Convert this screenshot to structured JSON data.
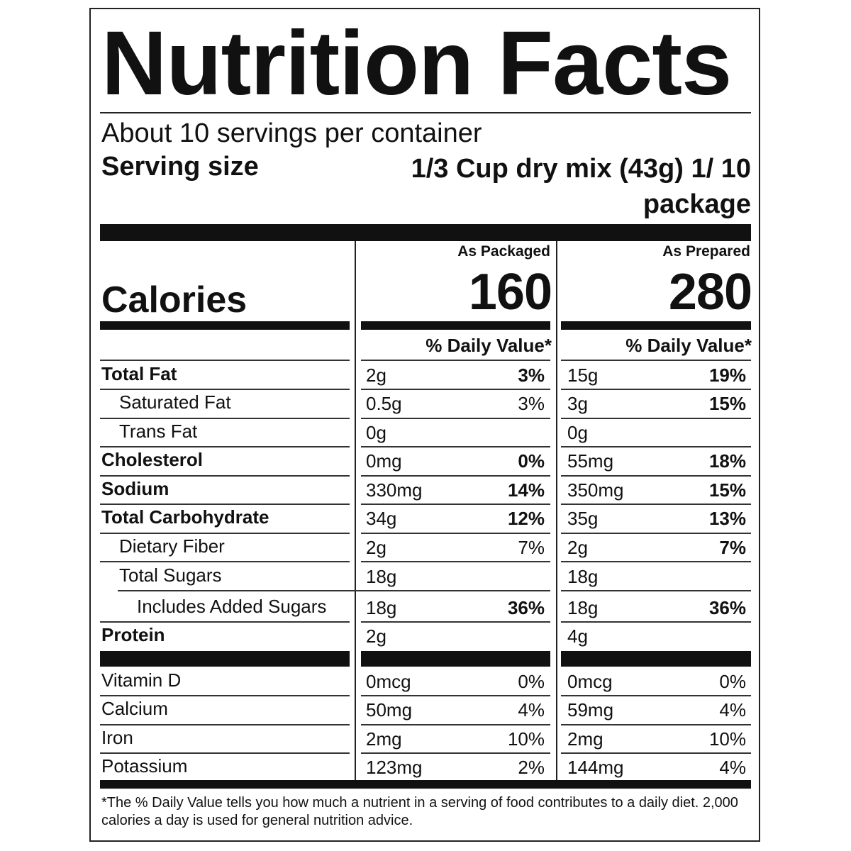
{
  "title": "Nutrition Facts",
  "servings_per_container": "About 10 servings per container",
  "serving_size": {
    "label": "Serving size",
    "value": "1/3 Cup dry mix (43g) 1/ 10 package"
  },
  "columns": [
    {
      "header": "As Packaged",
      "calories": "160",
      "dv_header": "% Daily Value*"
    },
    {
      "header": "As Prepared",
      "calories": "280",
      "dv_header": "% Daily Value*"
    }
  ],
  "calories_label": "Calories",
  "nutrients": [
    {
      "name": "Total Fat",
      "bold": true,
      "indent": 0,
      "packaged": {
        "amount": "2g",
        "dv": "3%"
      },
      "prepared": {
        "amount": "15g",
        "dv": "19%"
      }
    },
    {
      "name": "Saturated Fat",
      "bold": false,
      "indent": 1,
      "packaged": {
        "amount": "0.5g",
        "dv": "3%"
      },
      "prepared": {
        "amount": "3g",
        "dv": "15%"
      }
    },
    {
      "name": "Trans Fat",
      "bold": false,
      "indent": 1,
      "packaged": {
        "amount": "0g",
        "dv": ""
      },
      "prepared": {
        "amount": "0g",
        "dv": ""
      }
    },
    {
      "name": "Cholesterol",
      "bold": true,
      "indent": 0,
      "packaged": {
        "amount": "0mg",
        "dv": "0%"
      },
      "prepared": {
        "amount": "55mg",
        "dv": "18%"
      }
    },
    {
      "name": "Sodium",
      "bold": true,
      "indent": 0,
      "packaged": {
        "amount": "330mg",
        "dv": "14%"
      },
      "prepared": {
        "amount": "350mg",
        "dv": "15%"
      }
    },
    {
      "name": "Total Carbohydrate",
      "bold": true,
      "indent": 0,
      "packaged": {
        "amount": "34g",
        "dv": "12%"
      },
      "prepared": {
        "amount": "35g",
        "dv": "13%"
      }
    },
    {
      "name": "Dietary Fiber",
      "bold": false,
      "indent": 1,
      "packaged": {
        "amount": "2g",
        "dv": "7%"
      },
      "prepared": {
        "amount": "2g",
        "dv": "7%"
      }
    },
    {
      "name": "Total Sugars",
      "bold": false,
      "indent": 1,
      "packaged": {
        "amount": "18g",
        "dv": ""
      },
      "prepared": {
        "amount": "18g",
        "dv": ""
      }
    },
    {
      "name": "Includes Added Sugars",
      "bold": false,
      "indent": 2,
      "packaged": {
        "amount": "18g",
        "dv": "36%"
      },
      "prepared": {
        "amount": "18g",
        "dv": "36%"
      }
    },
    {
      "name": "Protein",
      "bold": true,
      "indent": 0,
      "packaged": {
        "amount": "2g",
        "dv": ""
      },
      "prepared": {
        "amount": "4g",
        "dv": ""
      }
    }
  ],
  "vitamins": [
    {
      "name": "Vitamin D",
      "packaged": {
        "amount": "0mcg",
        "dv": "0%"
      },
      "prepared": {
        "amount": "0mcg",
        "dv": "0%"
      }
    },
    {
      "name": "Calcium",
      "packaged": {
        "amount": "50mg",
        "dv": "4%"
      },
      "prepared": {
        "amount": "59mg",
        "dv": "4%"
      }
    },
    {
      "name": "Iron",
      "packaged": {
        "amount": "2mg",
        "dv": "10%"
      },
      "prepared": {
        "amount": "2mg",
        "dv": "10%"
      }
    },
    {
      "name": "Potassium",
      "packaged": {
        "amount": "123mg",
        "dv": "2%"
      },
      "prepared": {
        "amount": "144mg",
        "dv": "4%"
      }
    }
  ],
  "footnote": "*The % Daily Value tells you how much a nutrient in a serving of food contributes to a daily diet. 2,000 calories a day is used for general nutrition advice."
}
